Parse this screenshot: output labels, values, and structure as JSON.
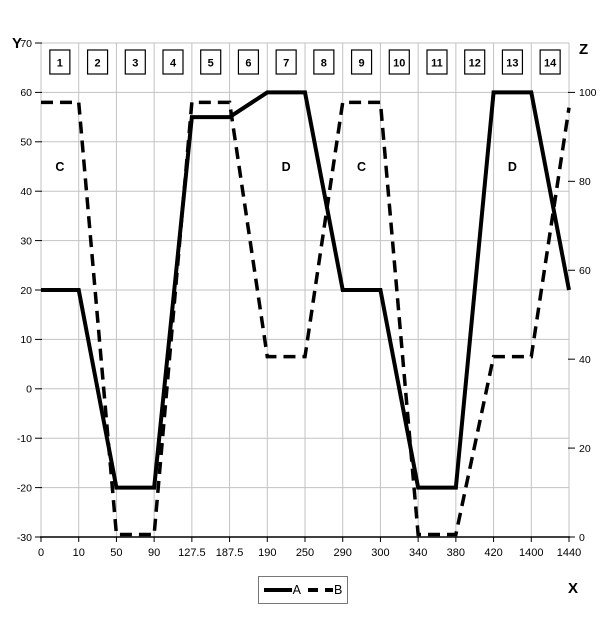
{
  "chart_data": {
    "type": "line",
    "title": "",
    "grid": true,
    "colors": {
      "line": "#000000",
      "grid": "#c3c3c3",
      "axis": "#000000",
      "background": "#ffffff"
    },
    "x_axis": {
      "label": "X",
      "tick_labels": [
        "0",
        "10",
        "50",
        "90",
        "127.5",
        "187.5",
        "190",
        "250",
        "290",
        "300",
        "340",
        "380",
        "420",
        "1400",
        "1440"
      ]
    },
    "y_axis": {
      "label": "Y",
      "min": -30,
      "max": 70,
      "ticks": [
        70,
        60,
        50,
        40,
        30,
        20,
        10,
        0,
        -10,
        -20,
        -30
      ]
    },
    "z_axis": {
      "label": "Z",
      "min": 0,
      "max": 100,
      "ticks": [
        100,
        80,
        60,
        40,
        20,
        0
      ]
    },
    "interval_boxes": [
      "1",
      "2",
      "3",
      "4",
      "5",
      "6",
      "7",
      "8",
      "9",
      "10",
      "11",
      "12",
      "13",
      "14"
    ],
    "region_labels": [
      {
        "text": "C",
        "interval": 1
      },
      {
        "text": "D",
        "interval": 7
      },
      {
        "text": "C",
        "interval": 9
      },
      {
        "text": "D",
        "interval": 13
      }
    ],
    "series": [
      {
        "name": "A",
        "axis": "y",
        "line_style": "solid",
        "values": [
          20,
          20,
          -20,
          -20,
          55,
          55,
          60,
          60,
          20,
          20,
          -20,
          -20,
          60,
          60,
          20
        ]
      },
      {
        "name": "B",
        "axis": "z",
        "line_style": "dashed",
        "values": [
          97.2,
          97.2,
          0,
          0,
          97.2,
          97.2,
          40,
          40,
          97.2,
          97.2,
          0,
          0,
          40,
          40,
          96
        ]
      }
    ],
    "legend": {
      "position": "bottom-center",
      "entries": [
        "A",
        "B"
      ]
    }
  }
}
